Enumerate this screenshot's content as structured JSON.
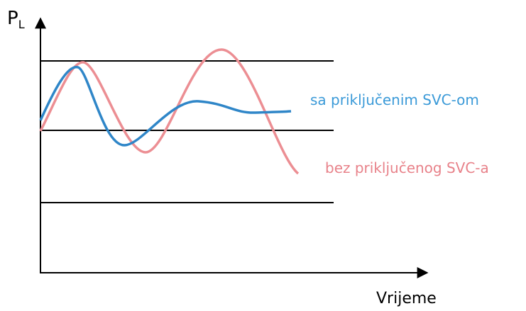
{
  "axes": {
    "y_label": "P",
    "y_label_sub": "L",
    "x_label": "Vrijeme"
  },
  "curves": [
    {
      "label": "sa priključenim SVC-om"
    },
    {
      "label": "bez priključenog SVC-a"
    }
  ]
}
